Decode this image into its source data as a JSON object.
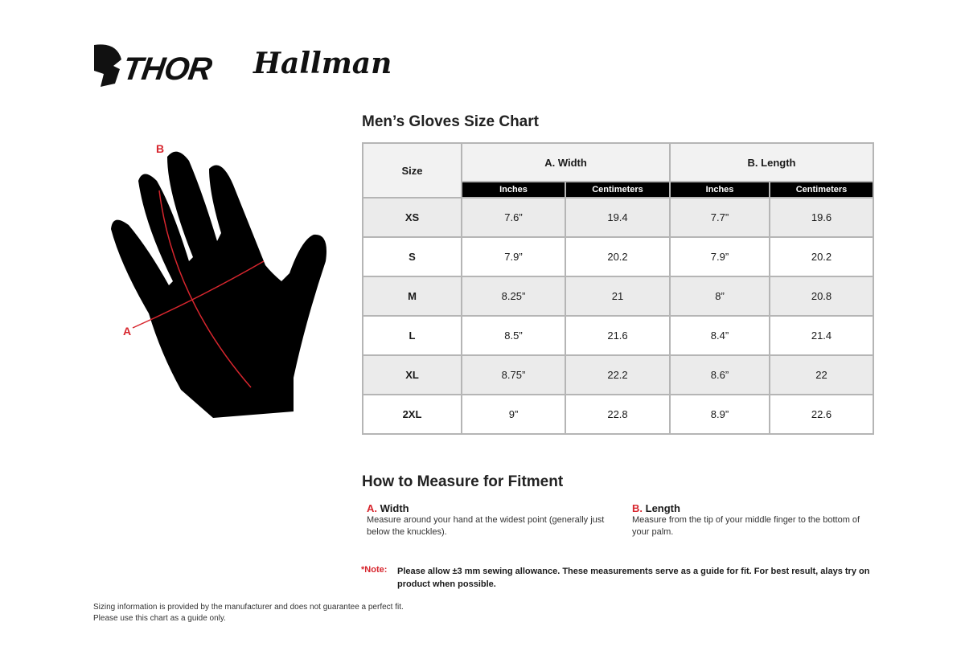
{
  "brands": [
    "THOR",
    "Hallman"
  ],
  "title": "Men’s Gloves Size Chart",
  "diagram": {
    "label_a": "A",
    "label_b": "B"
  },
  "table": {
    "size_header": "Size",
    "groups": [
      "A. Width",
      "B. Length"
    ],
    "units": [
      "Inches",
      "Centimeters",
      "Inches",
      "Centimeters"
    ],
    "rows": [
      [
        "XS",
        "7.6”",
        "19.4",
        "7.7”",
        "19.6"
      ],
      [
        "S",
        "7.9”",
        "20.2",
        "7.9”",
        "20.2"
      ],
      [
        "M",
        "8.25”",
        "21",
        "8”",
        "20.8"
      ],
      [
        "L",
        "8.5”",
        "21.6",
        "8.4”",
        "21.4"
      ],
      [
        "XL",
        "8.75”",
        "22.2",
        "8.6”",
        "22"
      ],
      [
        "2XL",
        "9”",
        "22.8",
        "8.9”",
        "22.6"
      ]
    ]
  },
  "measure": {
    "title": "How to Measure for Fitment",
    "a": {
      "letter": "A.",
      "label": "Width",
      "text": "Measure around your hand at the widest point (generally just below the knuckles)."
    },
    "b": {
      "letter": "B.",
      "label": "Length",
      "text": "Measure from the tip of your middle finger to the bottom of your palm."
    }
  },
  "note": {
    "label": "*Note:",
    "text": "Please allow ±3 mm sewing allowance. These measurements serve as a guide for fit. For best result, alays try on product when possible."
  },
  "footer": [
    "Sizing information is provided by the manufacturer and does not guarantee a perfect fit.",
    "Please use this chart as a guide only."
  ],
  "colors": {
    "accent": "#d7262e",
    "header_bg": "#f2f2f2",
    "alt_row": "#ebebeb"
  }
}
